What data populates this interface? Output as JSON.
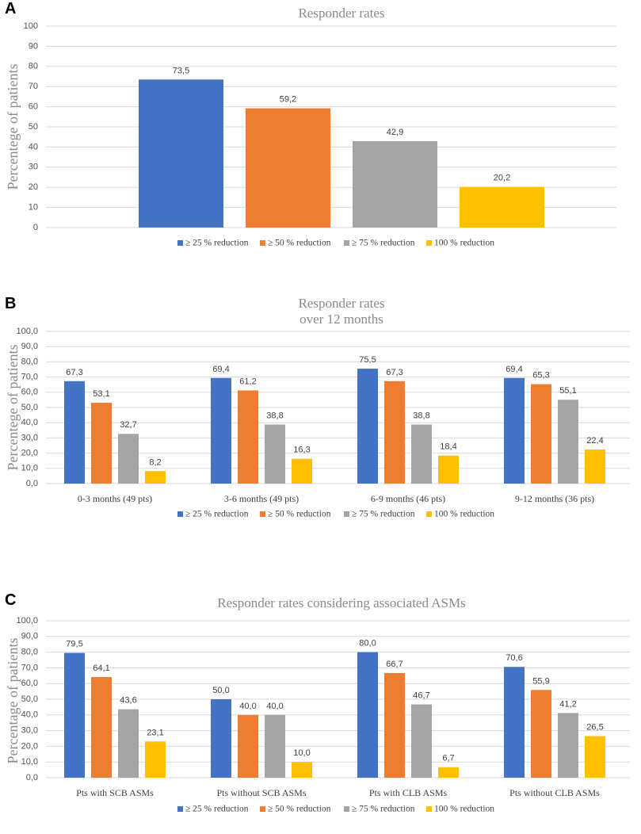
{
  "chart_data": [
    {
      "panel": "A",
      "type": "bar",
      "title": [
        "Responder rates"
      ],
      "ylabel": "Percentege of patients",
      "ylim": [
        0,
        100
      ],
      "ytick_step": 10,
      "ytick_labels": [
        "0",
        "10",
        "20",
        "30",
        "40",
        "50",
        "60",
        "70",
        "80",
        "90",
        "100"
      ],
      "categories": [
        ""
      ],
      "series": [
        {
          "name": "≥ 25 % reduction",
          "color": "#4472c4",
          "values": [
            73.5
          ],
          "labels": [
            "73,5"
          ]
        },
        {
          "name": "≥ 50 % reduction",
          "color": "#ed7d31",
          "values": [
            59.2
          ],
          "labels": [
            "59,2"
          ]
        },
        {
          "name": "≥ 75 % reduction",
          "color": "#a5a5a5",
          "values": [
            42.9
          ],
          "labels": [
            "42,9"
          ]
        },
        {
          "name": "100 % reduction",
          "color": "#ffc000",
          "values": [
            20.2
          ],
          "labels": [
            "20,2"
          ]
        }
      ],
      "legend": "bottom"
    },
    {
      "panel": "B",
      "type": "bar",
      "title": [
        "Responder rates",
        "over 12 months"
      ],
      "ylabel": "Percentege of patients",
      "ylim": [
        0,
        100
      ],
      "ytick_step": 10,
      "ytick_labels": [
        "0,0",
        "10,0",
        "20,0",
        "30,0",
        "40,0",
        "50,0",
        "60,0",
        "70,0",
        "80,0",
        "90,0",
        "100,0"
      ],
      "categories": [
        "0-3 months (49 pts)",
        "3-6 months (49 pts)",
        "6-9 months (46 pts)",
        "9-12 months (36 pts)"
      ],
      "series": [
        {
          "name": "≥ 25 % reduction",
          "color": "#4472c4",
          "values": [
            67.3,
            69.4,
            75.5,
            69.4
          ],
          "labels": [
            "67,3",
            "69,4",
            "75,5",
            "69,4"
          ]
        },
        {
          "name": "≥ 50 % reduction",
          "color": "#ed7d31",
          "values": [
            53.1,
            61.2,
            67.3,
            65.3
          ],
          "labels": [
            "53,1",
            "61,2",
            "67,3",
            "65,3"
          ]
        },
        {
          "name": "≥ 75 % reduction",
          "color": "#a5a5a5",
          "values": [
            32.7,
            38.8,
            38.8,
            55.1
          ],
          "labels": [
            "32,7",
            "38,8",
            "38,8",
            "55,1"
          ]
        },
        {
          "name": "100 % reduction",
          "color": "#ffc000",
          "values": [
            8.2,
            16.3,
            18.4,
            22.4
          ],
          "labels": [
            "8,2",
            "16,3",
            "18,4",
            "22,4"
          ]
        }
      ],
      "legend": "bottom"
    },
    {
      "panel": "C",
      "type": "bar",
      "title": [
        "Responder rates considering associated ASMs"
      ],
      "ylabel": "Percentage of patients",
      "ylim": [
        0,
        100
      ],
      "ytick_step": 10,
      "ytick_labels": [
        "0,0",
        "10,0",
        "20,0",
        "30,0",
        "40,0",
        "50,0",
        "60,0",
        "70,0",
        "80,0",
        "90,0",
        "100,0"
      ],
      "categories": [
        "Pts with SCB ASMs",
        "Pts without SCB ASMs",
        "Pts with CLB ASMs",
        "Pts without CLB ASMs"
      ],
      "series": [
        {
          "name": "≥ 25 % reduction",
          "color": "#4472c4",
          "values": [
            79.5,
            50.0,
            80.0,
            70.6
          ],
          "labels": [
            "79,5",
            "50,0",
            "80,0",
            "70,6"
          ]
        },
        {
          "name": "≥ 50 % reduction",
          "color": "#ed7d31",
          "values": [
            64.1,
            40.0,
            66.7,
            55.9
          ],
          "labels": [
            "64,1",
            "40,0",
            "66,7",
            "55,9"
          ]
        },
        {
          "name": "≥ 75 % reduction",
          "color": "#a5a5a5",
          "values": [
            43.6,
            40.0,
            46.7,
            41.2
          ],
          "labels": [
            "43,6",
            "40,0",
            "46,7",
            "41,2"
          ]
        },
        {
          "name": "100 % reduction",
          "color": "#ffc000",
          "values": [
            23.1,
            10.0,
            6.7,
            26.5
          ],
          "labels": [
            "23,1",
            "10,0",
            "6,7",
            "26,5"
          ]
        }
      ],
      "legend": "bottom"
    }
  ]
}
